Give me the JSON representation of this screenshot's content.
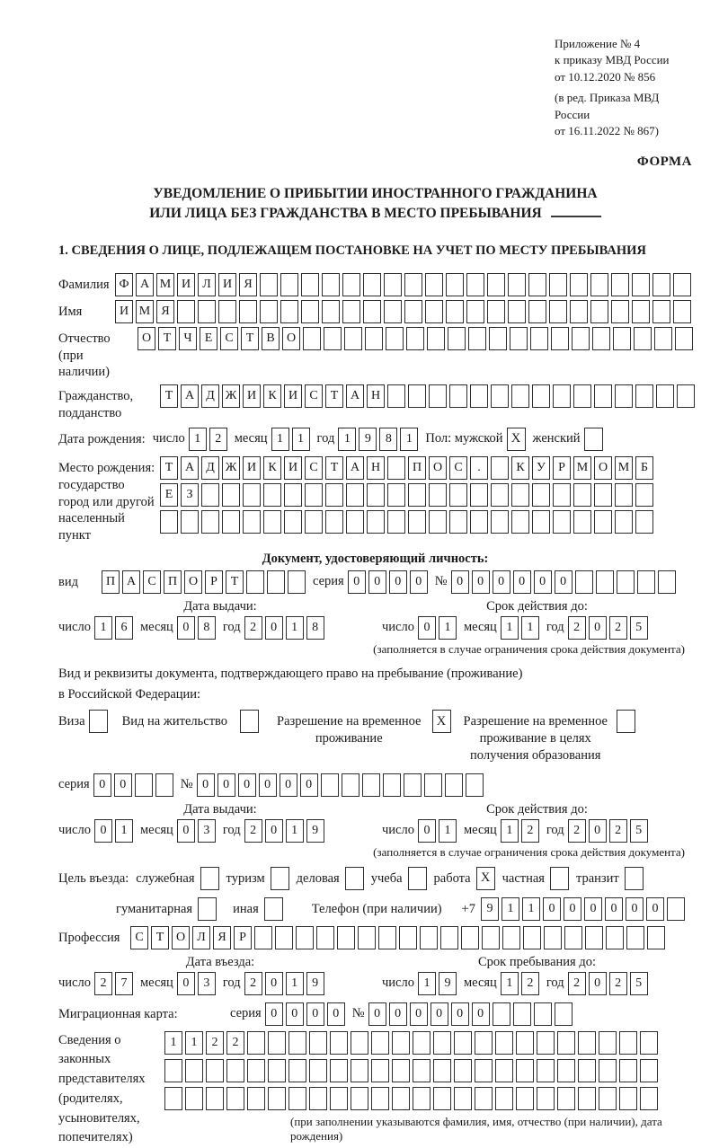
{
  "labels": {
    "day": "число",
    "month": "месяц",
    "year": "год",
    "series": "серия",
    "number": "№"
  },
  "header": {
    "annex_lines": [
      "Приложение № 4",
      "к приказу МВД России",
      "от 10.12.2020 № 856"
    ],
    "annex_note_lines": [
      "(в ред. Приказа МВД России",
      "от 16.11.2022 № 867)"
    ],
    "forma": "ФОРМА",
    "title_line1": "УВЕДОМЛЕНИЕ О ПРИБЫТИИ ИНОСТРАННОГО ГРАЖДАНИНА",
    "title_line2": "ИЛИ ЛИЦА БЕЗ ГРАЖДАНСТВА В МЕСТО ПРЕБЫВАНИЯ",
    "section1": "1. СВЕДЕНИЯ О ЛИЦЕ, ПОДЛЕЖАЩЕМ ПОСТАНОВКЕ НА УЧЕТ ПО МЕСТУ ПРЕБЫВАНИЯ"
  },
  "person": {
    "surname": {
      "label": "Фамилия",
      "value": "ФАМИЛИЯ",
      "count": 28
    },
    "given_name": {
      "label": "Имя",
      "value": "ИМЯ",
      "count": 28
    },
    "patronymic": {
      "label_line1": "Отчество",
      "label_line2": "(при наличии)",
      "value": "ОТЧЕСТВО",
      "count": 27
    },
    "citizenship": {
      "label_line1": "Гражданство,",
      "label_line2": "подданство",
      "value": "ТАДЖИКИСТАН",
      "count": 26
    },
    "birth_date_label": "Дата рождения:",
    "birth_date": {
      "day": "12",
      "month": "11",
      "year": "1981"
    },
    "sex": {
      "label": "Пол:",
      "male_label": "мужской",
      "male_mark": "X",
      "female_label": "женский",
      "female_mark": ""
    },
    "birth_place": {
      "label_line1": "Место рождения:",
      "label_line2": "государство",
      "label_line3": "город или другой",
      "label_line4": "населенный пункт",
      "row1": {
        "value": "ТАДЖИКИСТАН ПОС. КУРМОМБ",
        "count": 24
      },
      "row2": {
        "value": "ЕЗ",
        "count": 24
      },
      "row3": {
        "value": "",
        "count": 24
      }
    }
  },
  "identity_doc": {
    "header": "Документ, удостоверяющий личность:",
    "kind_label": "вид",
    "kind": {
      "value": "ПАСПОРТ",
      "count": 10
    },
    "series": {
      "value": "0000",
      "count": 4
    },
    "number": {
      "value": "000000",
      "count": 11
    },
    "issue_header": "Дата выдачи:",
    "issue": {
      "day": "16",
      "month": "08",
      "year": "2018"
    },
    "valid_header": "Срок действия до:",
    "valid": {
      "day": "01",
      "month": "11",
      "year": "2025"
    },
    "note": "(заполняется в случае ограничения срока действия документа)"
  },
  "residence_doc": {
    "intro_line1": "Вид и реквизиты документа, подтверждающего право на пребывание (проживание)",
    "intro_line2": "в Российской Федерации:",
    "visa_label": "Виза",
    "visa_mark": "",
    "residence_permit_label": "Вид на жительство",
    "residence_permit_mark": "",
    "temp_permit_line1": "Разрешение на временное",
    "temp_permit_line2": "проживание",
    "temp_permit_mark": "X",
    "edu_permit_line1": "Разрешение на временное",
    "edu_permit_line2": "проживание в целях",
    "edu_permit_line3": "получения образования",
    "edu_permit_mark": "",
    "series": {
      "value": "00",
      "count": 4
    },
    "number": {
      "value": "000000",
      "count": 14
    },
    "issue_header": "Дата выдачи:",
    "issue": {
      "day": "01",
      "month": "03",
      "year": "2019"
    },
    "valid_header": "Срок действия до:",
    "valid": {
      "day": "01",
      "month": "12",
      "year": "2025"
    },
    "note": "(заполняется в случае ограничения срока действия документа)"
  },
  "visit": {
    "purpose_label": "Цель въезда:",
    "purposes_row1": [
      {
        "label": "служебная",
        "mark": ""
      },
      {
        "label": "туризм",
        "mark": ""
      },
      {
        "label": "деловая",
        "mark": ""
      },
      {
        "label": "учеба",
        "mark": ""
      },
      {
        "label": "работа",
        "mark": "X"
      },
      {
        "label": "частная",
        "mark": ""
      },
      {
        "label": "транзит",
        "mark": ""
      }
    ],
    "purposes_row2": [
      {
        "label": "гуманитарная",
        "mark": ""
      },
      {
        "label": "иная",
        "mark": ""
      }
    ],
    "phone_label": "Телефон (при наличии)",
    "phone_prefix": "+7",
    "phone": {
      "value": "911000000",
      "count": 10
    },
    "profession_label": "Профессия",
    "profession": {
      "value": "СТОЛЯР",
      "count": 26
    },
    "entry_header": "Дата въезда:",
    "entry": {
      "day": "27",
      "month": "03",
      "year": "2019"
    },
    "stay_header": "Срок пребывания до:",
    "stay": {
      "day": "19",
      "month": "12",
      "year": "2025"
    }
  },
  "migration_card": {
    "label": "Миграционная карта:",
    "series": {
      "value": "0000",
      "count": 4
    },
    "number": {
      "value": "000000",
      "count": 10
    }
  },
  "representatives": {
    "label_lines": [
      "Сведения о",
      "законных",
      "представителях",
      "(родителях,",
      "усыновителях,",
      "попечителях)"
    ],
    "row1": {
      "value": "1122",
      "count": 24
    },
    "row2": {
      "value": "",
      "count": 24
    },
    "row3": {
      "value": "",
      "count": 24
    },
    "note": "(при заполнении указываются фамилия, имя, отчество (при наличии), дата рождения)"
  }
}
